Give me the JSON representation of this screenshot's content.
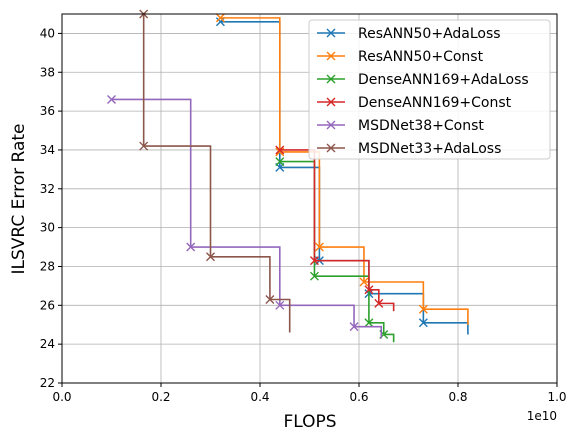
{
  "chart_data": {
    "type": "line",
    "title": "",
    "xlabel": "FLOPS",
    "ylabel": "ILSVRC Error Rate",
    "x_offset_label": "1e10",
    "xlim": [
      0.0,
      1.0
    ],
    "ylim": [
      22,
      41
    ],
    "x_ticks": [
      "0.0",
      "0.2",
      "0.4",
      "0.6",
      "0.8",
      "1.0"
    ],
    "y_ticks": [
      "22",
      "24",
      "26",
      "28",
      "30",
      "32",
      "34",
      "36",
      "38",
      "40"
    ],
    "grid": true,
    "legend_position": "top-right",
    "series": [
      {
        "name": "ResANN50+AdaLoss",
        "color": "#1f77b4",
        "points": [
          [
            0.32,
            40.6
          ],
          [
            0.44,
            33.1
          ],
          [
            0.52,
            28.3
          ],
          [
            0.62,
            26.6
          ],
          [
            0.73,
            25.1
          ],
          [
            0.82,
            24.5
          ]
        ]
      },
      {
        "name": "ResANN50+Const",
        "color": "#ff7f0e",
        "points": [
          [
            0.32,
            40.8
          ],
          [
            0.44,
            33.9
          ],
          [
            0.52,
            29.0
          ],
          [
            0.61,
            27.2
          ],
          [
            0.73,
            25.8
          ],
          [
            0.82,
            25.0
          ]
        ]
      },
      {
        "name": "DenseANN169+AdaLoss",
        "color": "#2ca02c",
        "points": [
          [
            0.44,
            33.4
          ],
          [
            0.51,
            27.5
          ],
          [
            0.62,
            25.1
          ],
          [
            0.65,
            24.5
          ],
          [
            0.67,
            24.1
          ]
        ]
      },
      {
        "name": "DenseANN169+Const",
        "color": "#d62728",
        "points": [
          [
            0.44,
            34.0
          ],
          [
            0.51,
            28.3
          ],
          [
            0.62,
            26.8
          ],
          [
            0.64,
            26.1
          ],
          [
            0.67,
            25.7
          ]
        ]
      },
      {
        "name": "MSDNet38+Const",
        "color": "#9467bd",
        "points": [
          [
            0.1,
            36.6
          ],
          [
            0.26,
            29.0
          ],
          [
            0.44,
            26.0
          ],
          [
            0.59,
            24.9
          ],
          [
            0.645,
            24.3
          ]
        ]
      },
      {
        "name": "MSDNet33+AdaLoss",
        "color": "#8c564b",
        "points": [
          [
            0.165,
            41.0
          ],
          [
            0.165,
            34.2
          ],
          [
            0.3,
            28.5
          ],
          [
            0.42,
            26.3
          ],
          [
            0.46,
            24.6
          ]
        ]
      }
    ]
  }
}
